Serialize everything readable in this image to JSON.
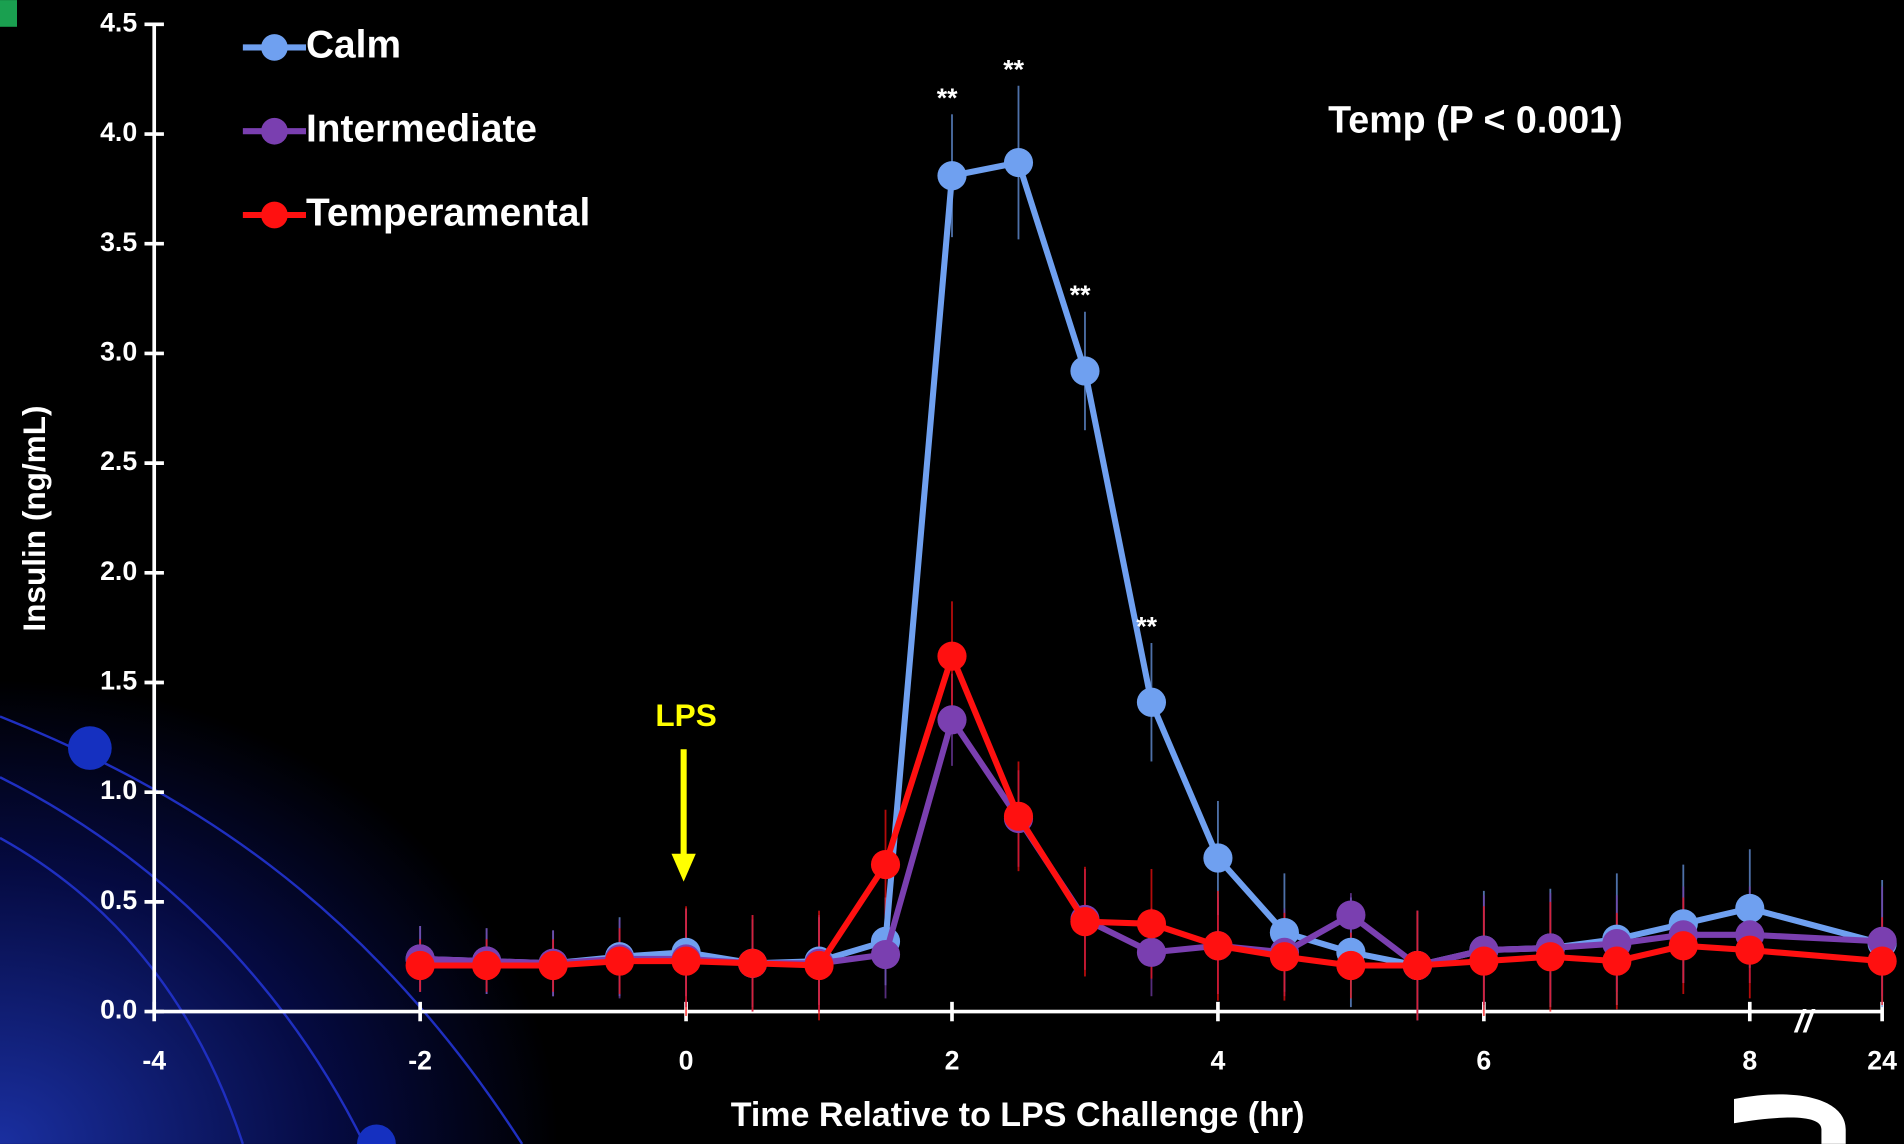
{
  "chart_data": {
    "type": "line",
    "y_label": "Insulin (ng/mL)",
    "x_label": "Time Relative to LPS Challenge (hr)",
    "stat_note": "Temp (P < 0.001)",
    "x": [
      -2,
      -1.5,
      -1,
      -0.5,
      0,
      0.5,
      1,
      1.5,
      2,
      2.5,
      3,
      3.5,
      4,
      4.5,
      5,
      5.5,
      6,
      6.5,
      7,
      7.5,
      8,
      24
    ],
    "series": [
      {
        "name": "Calm",
        "color": "#6fa0f0",
        "values": [
          0.24,
          0.23,
          0.22,
          0.25,
          0.27,
          0.22,
          0.23,
          0.32,
          3.81,
          3.87,
          2.92,
          1.41,
          0.7,
          0.36,
          0.27,
          0.21,
          0.28,
          0.29,
          0.33,
          0.4,
          0.47,
          0.31
        ],
        "errors": [
          0.15,
          0.15,
          0.15,
          0.18,
          0.2,
          0.2,
          0.2,
          0.2,
          0.28,
          0.35,
          0.27,
          0.27,
          0.26,
          0.27,
          0.25,
          0.25,
          0.27,
          0.27,
          0.3,
          0.27,
          0.27,
          0.29
        ]
      },
      {
        "name": "Intermediate",
        "color": "#7a3fb0",
        "values": [
          0.24,
          0.23,
          0.22,
          0.24,
          0.24,
          0.22,
          0.22,
          0.26,
          1.33,
          0.88,
          0.42,
          0.27,
          0.3,
          0.27,
          0.44,
          0.21,
          0.28,
          0.29,
          0.31,
          0.35,
          0.35,
          0.32
        ],
        "errors": [
          0.15,
          0.15,
          0.15,
          0.18,
          0.22,
          0.22,
          0.22,
          0.2,
          0.21,
          0.22,
          0.23,
          0.2,
          0.22,
          0.2,
          0.1,
          0.25,
          0.25,
          0.25,
          0.22,
          0.22,
          0.22,
          0.25
        ]
      },
      {
        "name": "Temperamental",
        "color": "#ff1010",
        "values": [
          0.21,
          0.21,
          0.21,
          0.23,
          0.23,
          0.22,
          0.21,
          0.67,
          1.62,
          0.89,
          0.41,
          0.4,
          0.3,
          0.25,
          0.21,
          0.21,
          0.23,
          0.25,
          0.23,
          0.3,
          0.28,
          0.23
        ],
        "errors": [
          0.12,
          0.12,
          0.12,
          0.15,
          0.25,
          0.22,
          0.25,
          0.25,
          0.25,
          0.25,
          0.25,
          0.25,
          0.25,
          0.2,
          0.15,
          0.25,
          0.25,
          0.25,
          0.22,
          0.22,
          0.22,
          0.2
        ]
      }
    ],
    "annotations": [
      {
        "text": "**",
        "x": 2
      },
      {
        "text": "**",
        "x": 2.5
      },
      {
        "text": "**",
        "x": 3
      },
      {
        "text": "**",
        "x": 3.5
      }
    ],
    "event": {
      "text": "LPS",
      "x": 0,
      "color": "#ffff00"
    },
    "xlim": [
      -4,
      24
    ],
    "x_break": {
      "from": 8,
      "to": 24,
      "label": "//"
    },
    "xticks": [
      -4,
      -2,
      0,
      2,
      4,
      6,
      8,
      24
    ],
    "ylim": [
      0,
      4.5
    ],
    "yticks": [
      {
        "value": 0,
        "label": "0.0"
      },
      {
        "value": 0.5,
        "label": "0.5"
      },
      {
        "value": 1,
        "label": "1.0"
      },
      {
        "value": 1.5,
        "label": "1.5"
      },
      {
        "value": 2,
        "label": "2.0"
      },
      {
        "value": 2.5,
        "label": "2.5"
      },
      {
        "value": 3,
        "label": "3.0"
      },
      {
        "value": 3.5,
        "label": "3.5"
      },
      {
        "value": 4,
        "label": "4.0"
      },
      {
        "value": 4.5,
        "label": "4.5"
      }
    ]
  }
}
